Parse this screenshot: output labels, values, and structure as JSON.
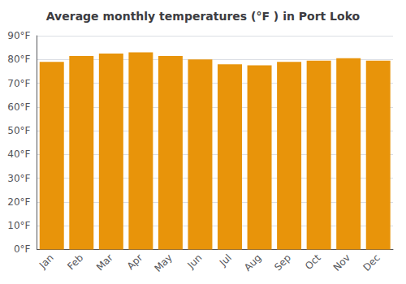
{
  "chart_data": {
    "type": "bar",
    "title": "Average monthly temperatures (°F ) in Port Loko",
    "categories": [
      "Jan",
      "Feb",
      "Mar",
      "Apr",
      "May",
      "Jun",
      "Jul",
      "Aug",
      "Sep",
      "Oct",
      "Nov",
      "Dec"
    ],
    "values": [
      79,
      81.5,
      82.5,
      83,
      81.5,
      80,
      78,
      77.5,
      79,
      79.5,
      80.5,
      79.5
    ],
    "color": "#E8940A",
    "ylim": [
      0,
      90
    ],
    "yticks": [
      {
        "value": 0,
        "label": "0°F"
      },
      {
        "value": 10,
        "label": "10°F"
      },
      {
        "value": 20,
        "label": "20°F"
      },
      {
        "value": 30,
        "label": "30°F"
      },
      {
        "value": 40,
        "label": "40°F"
      },
      {
        "value": 50,
        "label": "50°F"
      },
      {
        "value": 60,
        "label": "60°F"
      },
      {
        "value": 70,
        "label": "70°F"
      },
      {
        "value": 80,
        "label": "80°F"
      },
      {
        "value": 90,
        "label": "90°F"
      }
    ],
    "grid": true
  }
}
